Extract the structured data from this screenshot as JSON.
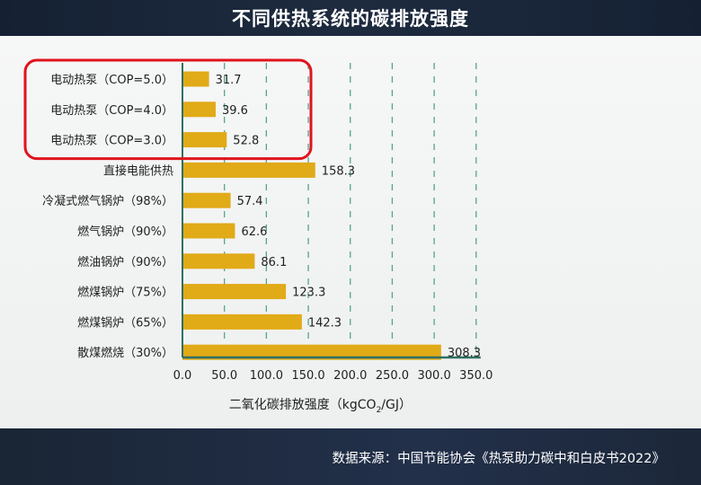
{
  "header": {
    "title": "不同供热系统的碳排放强度"
  },
  "footer": {
    "source": "数据来源：中国节能协会《热泵助力碳中和白皮书2022》"
  },
  "colors": {
    "bar": "#e1aa17",
    "gridline": "#55a38f",
    "highlight": "#e0141c",
    "axis": "#2f6f63"
  },
  "chart_data": {
    "type": "bar",
    "orientation": "horizontal",
    "categories": [
      "电动热泵（COP=5.0）",
      "电动热泵（COP=4.0）",
      "电动热泵（COP=3.0）",
      "直接电能供热",
      "冷凝式燃气锅炉（98%）",
      "燃气锅炉（90%）",
      "燃油锅炉（90%）",
      "燃煤锅炉（75%）",
      "燃煤锅炉（65%）",
      "散煤燃烧（30%）"
    ],
    "values": [
      31.7,
      39.6,
      52.8,
      158.3,
      57.4,
      62.6,
      86.1,
      123.3,
      142.3,
      308.3
    ],
    "value_labels": [
      "31.7",
      "39.6",
      "52.8",
      "158.3",
      "57.4",
      "62.6",
      "86.1",
      "123.3",
      "142.3",
      "308.3"
    ],
    "xlabel": {
      "main": "二氧化碳排放强度（kgCO",
      "sub": "2",
      "tail": "/GJ）"
    },
    "xlim": [
      0,
      350
    ],
    "xticks": [
      "0.0",
      "50.0",
      "100.0",
      "150.0",
      "200.0",
      "250.0",
      "300.0",
      "350.0"
    ],
    "grid": "vertical dashed",
    "highlighted_categories": [
      0,
      1,
      2
    ]
  }
}
